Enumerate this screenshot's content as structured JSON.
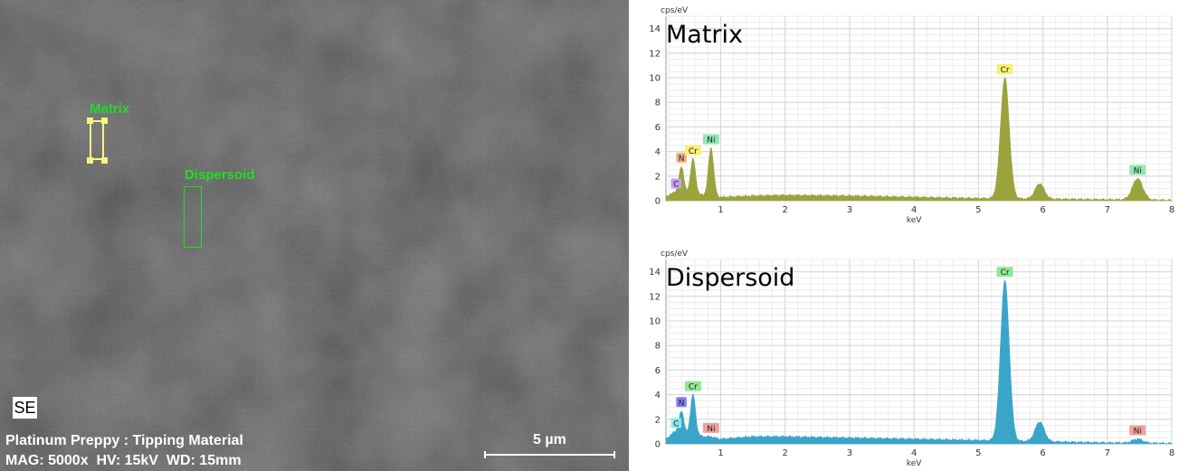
{
  "sem": {
    "detector": "SE",
    "sample_title": "Platinum Preppy : Tipping Material",
    "settings": "MAG: 5000x  HV: 15kV  WD: 15mm",
    "scale_bar_label": "5 µm",
    "roi_labels": {
      "matrix": "Matrix",
      "dispersoid": "Dispersoid"
    },
    "colors": {
      "matrix_roi": "#f8f480",
      "dispersoid_roi": "#22dd22"
    }
  },
  "chart_data": [
    {
      "type": "area",
      "title": "Matrix",
      "xlabel": "keV",
      "ylabel": "cps/eV",
      "xlim": [
        0.15,
        8
      ],
      "ylim": [
        0,
        15
      ],
      "xticks": [
        1,
        2,
        3,
        4,
        5,
        6,
        7,
        8
      ],
      "yticks": [
        0,
        2,
        4,
        6,
        8,
        10,
        12,
        14
      ],
      "grid": true,
      "fill_color": "#9aa33c",
      "baseline": [
        [
          0.15,
          0.4
        ],
        [
          0.5,
          0.6
        ],
        [
          1.0,
          0.3
        ],
        [
          1.5,
          0.4
        ],
        [
          2.0,
          0.45
        ],
        [
          3.0,
          0.4
        ],
        [
          4.0,
          0.3
        ],
        [
          5.0,
          0.2
        ],
        [
          6.0,
          0.15
        ],
        [
          7.0,
          0.1
        ],
        [
          8.0,
          0.05
        ]
      ],
      "peaks": [
        {
          "label": "C",
          "energy": 0.28,
          "height": 0.7,
          "label_color": "#c9a0f0"
        },
        {
          "label": "N",
          "energy": 0.39,
          "height": 2.8,
          "label_color": "#f0b080"
        },
        {
          "label": "Cr",
          "energy": 0.57,
          "height": 3.4,
          "label_color": "#f8f070"
        },
        {
          "label": "Ni",
          "energy": 0.85,
          "height": 4.3,
          "label_color": "#90e8b0"
        },
        {
          "label": "Cr",
          "energy": 5.41,
          "height": 10.0,
          "label_color": "#f8f070"
        },
        {
          "label": "",
          "energy": 5.95,
          "height": 1.4,
          "label_color": ""
        },
        {
          "label": "Ni",
          "energy": 7.47,
          "height": 1.8,
          "label_color": "#90e8b0"
        }
      ]
    },
    {
      "type": "area",
      "title": "Dispersoid",
      "xlabel": "keV",
      "ylabel": "cps/eV",
      "xlim": [
        0.15,
        8
      ],
      "ylim": [
        0,
        15
      ],
      "xticks": [
        1,
        2,
        3,
        4,
        5,
        6,
        7,
        8
      ],
      "yticks": [
        0,
        2,
        4,
        6,
        8,
        10,
        12,
        14
      ],
      "grid": true,
      "fill_color": "#3aa5c8",
      "baseline": [
        [
          0.15,
          0.5
        ],
        [
          0.5,
          0.8
        ],
        [
          1.0,
          0.4
        ],
        [
          1.5,
          0.6
        ],
        [
          2.0,
          0.6
        ],
        [
          3.0,
          0.5
        ],
        [
          4.0,
          0.4
        ],
        [
          5.0,
          0.3
        ],
        [
          6.0,
          0.2
        ],
        [
          7.0,
          0.1
        ],
        [
          8.0,
          0.05
        ]
      ],
      "peaks": [
        {
          "label": "C",
          "energy": 0.28,
          "height": 1.0,
          "label_color": "#90e8e8"
        },
        {
          "label": "N",
          "energy": 0.39,
          "height": 2.7,
          "label_color": "#8080f0"
        },
        {
          "label": "Cr",
          "energy": 0.57,
          "height": 4.0,
          "label_color": "#90e890"
        },
        {
          "label": "Ni",
          "energy": 0.85,
          "height": 0.6,
          "label_color": "#f0a0a0"
        },
        {
          "label": "Cr",
          "energy": 5.41,
          "height": 13.3,
          "label_color": "#90e890"
        },
        {
          "label": "",
          "energy": 5.95,
          "height": 1.8,
          "label_color": ""
        },
        {
          "label": "Ni",
          "energy": 7.47,
          "height": 0.4,
          "label_color": "#f0a0a0"
        }
      ]
    }
  ]
}
